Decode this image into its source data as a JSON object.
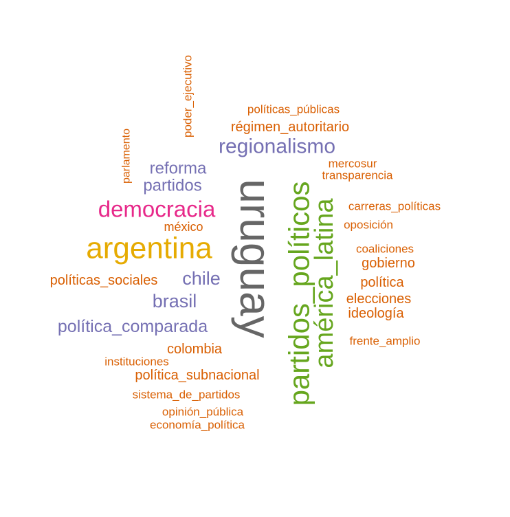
{
  "colors": {
    "gray": "#666666",
    "green": "#66a61e",
    "orange": "#d95f02",
    "purple": "#7570b3",
    "pink": "#e7298a",
    "gold": "#e6ab02"
  },
  "words": [
    {
      "id": "uruguay",
      "text": "uruguay",
      "color": "gray",
      "weight": 10
    },
    {
      "id": "partidos-politicos",
      "text": "partidos_políticos",
      "color": "green",
      "weight": 7
    },
    {
      "id": "america-latina",
      "text": "américa_latina",
      "color": "green",
      "weight": 6.5
    },
    {
      "id": "argentina",
      "text": "argentina",
      "color": "gold",
      "weight": 6.5
    },
    {
      "id": "democracia",
      "text": "democracia",
      "color": "pink",
      "weight": 5
    },
    {
      "id": "regionalismo",
      "text": "regionalismo",
      "color": "purple",
      "weight": 4.5
    },
    {
      "id": "politica-comparada",
      "text": "política_comparada",
      "color": "purple",
      "weight": 4
    },
    {
      "id": "brasil",
      "text": "brasil",
      "color": "purple",
      "weight": 4
    },
    {
      "id": "chile",
      "text": "chile",
      "color": "purple",
      "weight": 4
    },
    {
      "id": "reforma",
      "text": "reforma",
      "color": "purple",
      "weight": 4
    },
    {
      "id": "partidos",
      "text": "partidos",
      "color": "purple",
      "weight": 4
    },
    {
      "id": "regimen-autoritario",
      "text": "régimen_autoritario",
      "color": "orange",
      "weight": 3
    },
    {
      "id": "politicas-publicas",
      "text": "políticas_públicas",
      "color": "orange",
      "weight": 2.5
    },
    {
      "id": "poder-ejecutivo",
      "text": "poder_ejecutivo",
      "color": "orange",
      "weight": 2.5
    },
    {
      "id": "parlamento",
      "text": "parlamento",
      "color": "orange",
      "weight": 2.5
    },
    {
      "id": "mercosur",
      "text": "mercosur",
      "color": "orange",
      "weight": 2.5
    },
    {
      "id": "transparencia",
      "text": "transparencia",
      "color": "orange",
      "weight": 2.5
    },
    {
      "id": "carreras-politicas",
      "text": "carreras_políticas",
      "color": "orange",
      "weight": 2.5
    },
    {
      "id": "oposicion",
      "text": "oposición",
      "color": "orange",
      "weight": 2.5
    },
    {
      "id": "mexico",
      "text": "méxico",
      "color": "orange",
      "weight": 2.5
    },
    {
      "id": "coaliciones",
      "text": "coaliciones",
      "color": "orange",
      "weight": 2.5
    },
    {
      "id": "gobierno",
      "text": "gobierno",
      "color": "orange",
      "weight": 3
    },
    {
      "id": "politicas-sociales",
      "text": "políticas_sociales",
      "color": "orange",
      "weight": 3
    },
    {
      "id": "politica",
      "text": "política",
      "color": "orange",
      "weight": 3
    },
    {
      "id": "elecciones",
      "text": "elecciones",
      "color": "orange",
      "weight": 3
    },
    {
      "id": "ideologia",
      "text": "ideología",
      "color": "orange",
      "weight": 3
    },
    {
      "id": "frente-amplio",
      "text": "frente_amplio",
      "color": "orange",
      "weight": 2.5
    },
    {
      "id": "colombia",
      "text": "colombia",
      "color": "orange",
      "weight": 3
    },
    {
      "id": "instituciones",
      "text": "instituciones",
      "color": "orange",
      "weight": 2.5
    },
    {
      "id": "politica-subnacional",
      "text": "política_subnacional",
      "color": "orange",
      "weight": 3
    },
    {
      "id": "sistema-de-partidos",
      "text": "sistema_de_partidos",
      "color": "orange",
      "weight": 2.5
    },
    {
      "id": "opinion-publica",
      "text": "opinión_pública",
      "color": "orange",
      "weight": 2.5
    },
    {
      "id": "economia-politica",
      "text": "economía_política",
      "color": "orange",
      "weight": 2.5
    }
  ]
}
